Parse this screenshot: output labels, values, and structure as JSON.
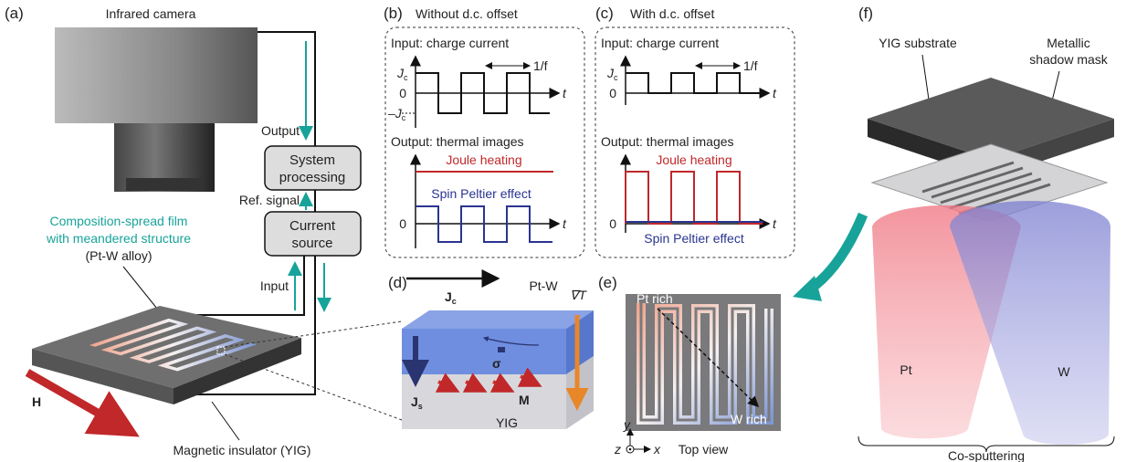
{
  "panels": {
    "a": {
      "label": "(a)",
      "camera": "Infrared camera",
      "output": "Output",
      "processing": [
        "System",
        "processing"
      ],
      "ref_signal": "Ref. signal",
      "source": [
        "Current",
        "source"
      ],
      "input": "Input",
      "film": [
        "Composition-spread film",
        "with meandered structure",
        "(Pt-W alloy)"
      ],
      "field": "H",
      "insulator": "Magnetic insulator (YIG)"
    },
    "b": {
      "label": "(b)",
      "title": "Without d.c. offset",
      "input_title": "Input: charge current",
      "jc": {
        "symbol": "J",
        "sub": "c"
      },
      "neg_jc": {
        "symbol": "–J",
        "sub": "c"
      },
      "zero": "0",
      "period": "1/f",
      "t": "t",
      "output_title": "Output: thermal images",
      "joule": "Joule heating",
      "spin": "Spin Peltier effect"
    },
    "c": {
      "label": "(c)",
      "title": "With d.c. offset",
      "input_title": "Input: charge current",
      "jc": {
        "symbol": "J",
        "sub": "c"
      },
      "zero": "0",
      "period": "1/f",
      "t": "t",
      "output_title": "Output: thermal images",
      "joule": "Joule heating",
      "spin": "Spin Peltier effect"
    },
    "d": {
      "label": "(d)",
      "jc": {
        "symbol": "J",
        "sub": "c"
      },
      "layer": "Pt-W",
      "gradient": "∇T",
      "sigma": "σ",
      "js": {
        "symbol": "J",
        "sub": "s"
      },
      "m": "M",
      "yig": "YIG"
    },
    "e": {
      "label": "(e)",
      "pt_rich": "Pt rich",
      "w_rich": "W rich",
      "y": "y",
      "z": "z",
      "x": "x",
      "caption": "Top view"
    },
    "f": {
      "label": "(f)",
      "substrate": "YIG substrate",
      "mask": [
        "Metallic",
        "shadow mask"
      ],
      "pt": "Pt",
      "w": "W",
      "caption": "Co-sputtering"
    }
  }
}
